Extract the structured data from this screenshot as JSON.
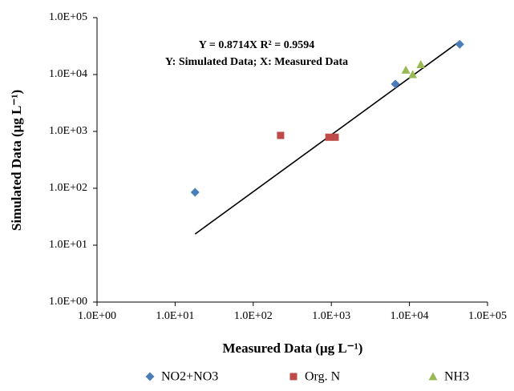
{
  "chart_data": {
    "type": "scatter",
    "x_label": "Measured Data (μg L⁻¹)",
    "y_label": "Simulated Data (μg L⁻¹)",
    "annotations": [
      "Y = 0.8714X  R² = 0.9594",
      "Y: Simulated Data; X: Measured Data"
    ],
    "trendline": {
      "slope": 0.8714,
      "color": "#000000"
    },
    "log_x": true,
    "log_y": true,
    "xlim": [
      1,
      100000
    ],
    "ylim": [
      1,
      100000
    ],
    "xticks": [
      {
        "value": 1,
        "label": "1.0E+00"
      },
      {
        "value": 10,
        "label": "1.0E+01"
      },
      {
        "value": 100,
        "label": "1.0E+02"
      },
      {
        "value": 1000,
        "label": "1.0E+03"
      },
      {
        "value": 10000,
        "label": "1.0E+04"
      },
      {
        "value": 100000,
        "label": "1.0E+05"
      }
    ],
    "yticks": [
      {
        "value": 1,
        "label": "1.0E+00"
      },
      {
        "value": 10,
        "label": "1.0E+01"
      },
      {
        "value": 100,
        "label": "1.0E+02"
      },
      {
        "value": 1000,
        "label": "1.0E+03"
      },
      {
        "value": 10000,
        "label": "1.0E+04"
      },
      {
        "value": 100000,
        "label": "1.0E+05"
      }
    ],
    "series": [
      {
        "name": "NO2+NO3",
        "color": "#4a7ebb",
        "marker": "diamond",
        "x": [
          18,
          6600,
          44000
        ],
        "values": [
          85,
          6800,
          34000
        ]
      },
      {
        "name": "Org. N",
        "color": "#be4b48",
        "marker": "square",
        "x": [
          224,
          930,
          1120
        ],
        "values": [
          850,
          790,
          790
        ]
      },
      {
        "name": "NH3",
        "color": "#98b954",
        "marker": "triangle",
        "x": [
          9000,
          11000,
          14000
        ],
        "values": [
          12000,
          10000,
          15000
        ]
      }
    ]
  }
}
